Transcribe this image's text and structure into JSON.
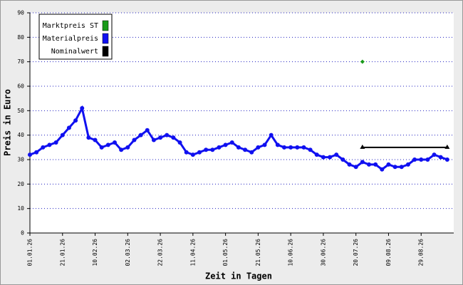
{
  "chart_data": {
    "type": "line",
    "x_label": "Zeit in Tagen",
    "y_label": "Preis in Euro",
    "categories": [
      "01.01.26",
      null,
      null,
      null,
      null,
      "21.01.26",
      null,
      null,
      null,
      null,
      "10.02.26",
      null,
      null,
      null,
      null,
      "02.03.26",
      null,
      null,
      null,
      null,
      "22.03.26",
      null,
      null,
      null,
      null,
      "11.04.26",
      null,
      null,
      null,
      null,
      "01.05.26",
      null,
      null,
      null,
      null,
      "21.05.26",
      null,
      null,
      null,
      null,
      "10.06.26",
      null,
      null,
      null,
      null,
      "30.06.26",
      null,
      null,
      null,
      null,
      "20.07.26",
      null,
      null,
      null,
      null,
      "09.08.26",
      null,
      null,
      null,
      null,
      "29.08.26",
      null,
      null,
      null,
      null
    ],
    "series": [
      {
        "name": "Marktpreis ST",
        "color": "#1a9a1a",
        "values": [
          null,
          null,
          null,
          null,
          null,
          null,
          null,
          null,
          null,
          null,
          null,
          null,
          null,
          null,
          null,
          null,
          null,
          null,
          null,
          null,
          null,
          null,
          null,
          null,
          null,
          null,
          null,
          null,
          null,
          null,
          null,
          null,
          null,
          null,
          null,
          null,
          null,
          null,
          null,
          null,
          null,
          null,
          null,
          null,
          null,
          null,
          null,
          null,
          null,
          null,
          null,
          70,
          null,
          null,
          null,
          null,
          null,
          null,
          null,
          null,
          null,
          null,
          null,
          null,
          null
        ]
      },
      {
        "name": "Materialpreis",
        "color": "#1010f0",
        "values": [
          32,
          33,
          35,
          36,
          37,
          40,
          43,
          46,
          51,
          39,
          38,
          35,
          36,
          37,
          34,
          35,
          38,
          40,
          42,
          38,
          39,
          40,
          39,
          37,
          33,
          32,
          33,
          34,
          34,
          35,
          36,
          37,
          35,
          34,
          33,
          35,
          36,
          40,
          36,
          35,
          35,
          35,
          35,
          34,
          32,
          31,
          31,
          32,
          30,
          28,
          27,
          29,
          28,
          28,
          26,
          28,
          27,
          27,
          28,
          30,
          30,
          30,
          32,
          31,
          30
        ]
      },
      {
        "name": "Nominalwert",
        "color": "#000000",
        "values": [
          null,
          null,
          null,
          null,
          null,
          null,
          null,
          null,
          null,
          null,
          null,
          null,
          null,
          null,
          null,
          null,
          null,
          null,
          null,
          null,
          null,
          null,
          null,
          null,
          null,
          null,
          null,
          null,
          null,
          null,
          null,
          null,
          null,
          null,
          null,
          null,
          null,
          null,
          null,
          null,
          null,
          null,
          null,
          null,
          null,
          null,
          null,
          null,
          null,
          null,
          null,
          35,
          35,
          35,
          35,
          35,
          35,
          35,
          35,
          35,
          35,
          35,
          35,
          35,
          35
        ]
      }
    ],
    "ylim": [
      0,
      90
    ],
    "yticks": [
      0,
      10,
      20,
      30,
      40,
      50,
      60,
      70,
      80,
      90
    ],
    "grid": true
  }
}
